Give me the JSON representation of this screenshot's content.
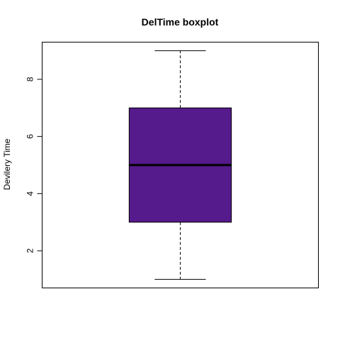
{
  "chart_data": {
    "type": "boxplot",
    "title": "DelTime boxplot",
    "xlabel": "",
    "ylabel": "Devilery Time",
    "ylim": [
      0.7,
      9.3
    ],
    "yticks": [
      2,
      4,
      6,
      8
    ],
    "ytick_labels": [
      "2",
      "4",
      "6",
      "8"
    ],
    "grid": false,
    "series": [
      {
        "min": 1,
        "q1": 3,
        "median": 5,
        "q3": 7,
        "max": 9
      }
    ],
    "colors": {
      "box_fill": "#551A8B",
      "stroke": "#000000"
    }
  }
}
